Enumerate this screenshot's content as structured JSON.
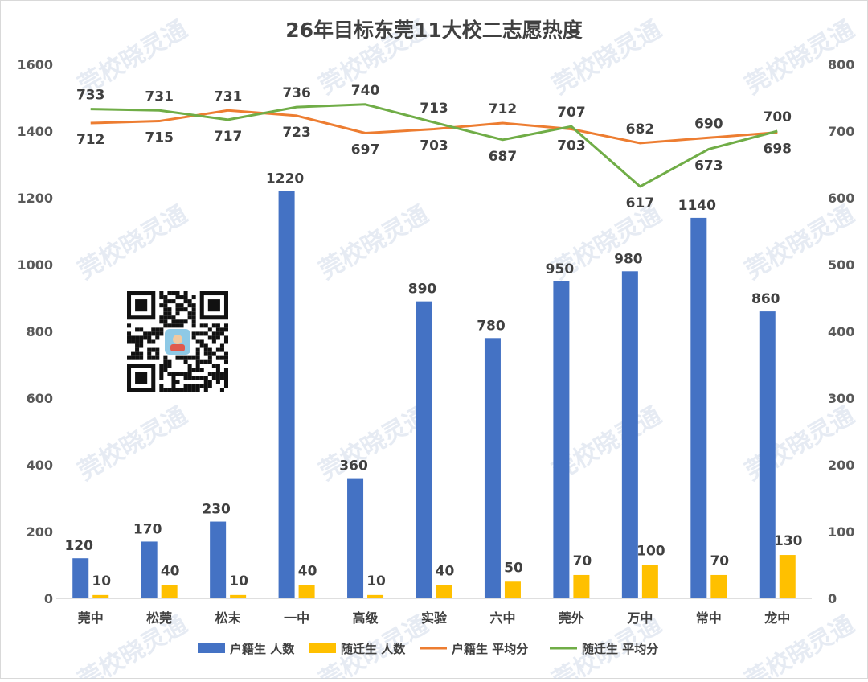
{
  "watermark": "莞校晓灵通",
  "chart_data": {
    "type": "bar",
    "title": "26年目标东莞11大校二志愿热度",
    "categories": [
      "莞中",
      "松莞",
      "松末",
      "一中",
      "高级",
      "实验",
      "六中",
      "莞外",
      "万中",
      "常中",
      "龙中"
    ],
    "left_axis": {
      "range": [
        0,
        1600
      ],
      "ticks": [
        0,
        200,
        400,
        600,
        800,
        1000,
        1200,
        1400,
        1600
      ]
    },
    "right_axis": {
      "range": [
        0,
        800
      ],
      "ticks": [
        0,
        100,
        200,
        300,
        400,
        500,
        600,
        700,
        800
      ]
    },
    "series": [
      {
        "name": "户籍生 人数",
        "kind": "bar",
        "axis": "left",
        "color": "#4472C4",
        "values": [
          120,
          170,
          230,
          1220,
          360,
          890,
          780,
          950,
          980,
          1140,
          860
        ],
        "labels": [
          "120",
          "170",
          "230",
          "1220",
          "360",
          "890",
          "780",
          "950",
          "980",
          "1140",
          "860"
        ]
      },
      {
        "name": "随迁生 人数",
        "kind": "bar",
        "axis": "left",
        "color": "#FFC000",
        "values": [
          10,
          40,
          10,
          40,
          10,
          40,
          50,
          70,
          100,
          70,
          130
        ],
        "labels": [
          "10",
          "40",
          "10",
          "40",
          "10",
          "40",
          "50",
          "70",
          "100",
          "70",
          "130"
        ]
      },
      {
        "name": "户籍生 平均分",
        "kind": "line",
        "axis": "right",
        "color": "#ED7D31",
        "values": [
          712,
          715,
          731,
          723,
          697,
          703,
          712,
          703,
          682,
          690,
          698
        ],
        "labels": [
          "712",
          "715",
          "731",
          "723",
          "697",
          "703",
          "712",
          "703",
          "682",
          "690",
          "698"
        ]
      },
      {
        "name": "随迁生 平均分",
        "kind": "line",
        "axis": "right",
        "color": "#70AD47",
        "values": [
          733,
          731,
          717,
          736,
          740,
          713,
          687,
          707,
          617,
          673,
          700
        ],
        "labels": [
          "733",
          "731",
          "717",
          "736",
          "740",
          "713",
          "687",
          "707",
          "617",
          "673",
          "700"
        ]
      }
    ],
    "grid": false,
    "legend": "bottom"
  }
}
